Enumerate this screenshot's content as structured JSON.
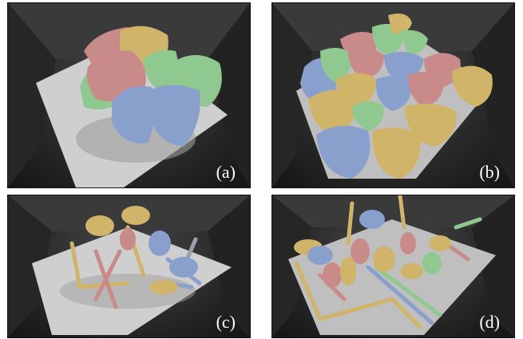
{
  "panels": [
    {
      "label": "(a)"
    },
    {
      "label": "(b)"
    },
    {
      "label": "(c)"
    },
    {
      "label": "(d)"
    }
  ],
  "colors": {
    "red": "#c98a8a",
    "yellow": "#cfb46a",
    "green": "#8fc98f",
    "blue": "#8aa0cc",
    "floor": "#cfcfcf"
  }
}
